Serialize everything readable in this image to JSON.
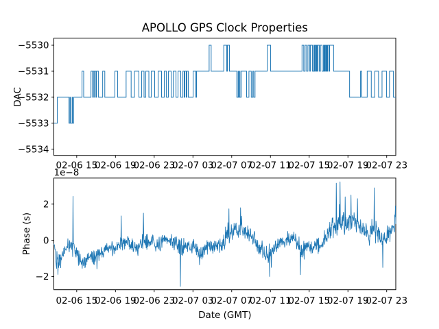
{
  "figure": {
    "title": "APOLLO GPS Clock Properties",
    "background_color": "#ffffff",
    "line_color": "#1f77b4",
    "spine_color": "#000000"
  },
  "chart_data": [
    {
      "type": "line",
      "subtype": "step",
      "title": "APOLLO GPS Clock Properties",
      "ylabel": "DAC",
      "xlabel": "",
      "grid": false,
      "legend": "none",
      "x_unit": "hours relative to tick 02-06 15:00 GMT",
      "x_range_hours": [
        -2.36,
        32.94
      ],
      "ylim": [
        -5534.24,
        -5529.74
      ],
      "y_ticks": [
        -5530,
        -5531,
        -5532,
        -5533,
        -5534
      ],
      "y_tick_labels": [
        "−5530",
        "−5531",
        "−5532",
        "−5533",
        "−5534"
      ],
      "x_ticks_hours": [
        0,
        4,
        8,
        12,
        16,
        20,
        24,
        28,
        32
      ],
      "x_tick_labels": [
        "02-06 15",
        "02-06 19",
        "02-06 23",
        "02-07 03",
        "02-07 07",
        "02-07 11",
        "02-07 15",
        "02-07 19",
        "02-07 23"
      ],
      "line_color": "#1f77b4",
      "step_points": [
        [
          -2.36,
          -5533
        ],
        [
          -2.0,
          -5532
        ],
        [
          -0.8,
          -5533
        ],
        [
          -0.71,
          -5532
        ],
        [
          -0.64,
          -5533
        ],
        [
          -0.47,
          -5532
        ],
        [
          -0.43,
          -5533
        ],
        [
          -0.32,
          -5532
        ],
        [
          0.55,
          -5531
        ],
        [
          0.72,
          -5532
        ],
        [
          1.47,
          -5531
        ],
        [
          1.65,
          -5532
        ],
        [
          1.72,
          -5531
        ],
        [
          1.84,
          -5532
        ],
        [
          1.88,
          -5531
        ],
        [
          2.0,
          -5532
        ],
        [
          2.05,
          -5531
        ],
        [
          2.25,
          -5532
        ],
        [
          2.68,
          -5531
        ],
        [
          2.9,
          -5532
        ],
        [
          3.94,
          -5531
        ],
        [
          4.23,
          -5532
        ],
        [
          5.1,
          -5531
        ],
        [
          5.62,
          -5532
        ],
        [
          5.96,
          -5531
        ],
        [
          6.42,
          -5532
        ],
        [
          6.7,
          -5531
        ],
        [
          6.95,
          -5532
        ],
        [
          7.13,
          -5531
        ],
        [
          7.45,
          -5532
        ],
        [
          7.7,
          -5531
        ],
        [
          8.05,
          -5532
        ],
        [
          8.41,
          -5531
        ],
        [
          8.76,
          -5532
        ],
        [
          9.04,
          -5531
        ],
        [
          9.26,
          -5532
        ],
        [
          9.47,
          -5531
        ],
        [
          9.75,
          -5532
        ],
        [
          9.96,
          -5531
        ],
        [
          10.25,
          -5532
        ],
        [
          10.46,
          -5531
        ],
        [
          10.74,
          -5532
        ],
        [
          10.96,
          -5531
        ],
        [
          11.1,
          -5532
        ],
        [
          11.17,
          -5531
        ],
        [
          11.31,
          -5532
        ],
        [
          11.38,
          -5531
        ],
        [
          11.52,
          -5532
        ],
        [
          12.02,
          -5531
        ],
        [
          12.3,
          -5532
        ],
        [
          12.37,
          -5531
        ],
        [
          13.67,
          -5530
        ],
        [
          13.88,
          -5531
        ],
        [
          15.18,
          -5530
        ],
        [
          15.49,
          -5531
        ],
        [
          15.56,
          -5530
        ],
        [
          15.77,
          -5531
        ],
        [
          16.53,
          -5532
        ],
        [
          16.66,
          -5531
        ],
        [
          16.71,
          -5532
        ],
        [
          16.82,
          -5531
        ],
        [
          16.86,
          -5532
        ],
        [
          16.98,
          -5531
        ],
        [
          17.54,
          -5532
        ],
        [
          17.78,
          -5531
        ],
        [
          18.02,
          -5532
        ],
        [
          18.18,
          -5531
        ],
        [
          18.27,
          -5532
        ],
        [
          18.41,
          -5531
        ],
        [
          19.67,
          -5530
        ],
        [
          20.02,
          -5531
        ],
        [
          23.26,
          -5530
        ],
        [
          23.44,
          -5531
        ],
        [
          23.58,
          -5530
        ],
        [
          23.73,
          -5531
        ],
        [
          23.87,
          -5530
        ],
        [
          24.06,
          -5531
        ],
        [
          24.12,
          -5530
        ],
        [
          24.34,
          -5531
        ],
        [
          24.48,
          -5530
        ],
        [
          24.55,
          -5531
        ],
        [
          24.61,
          -5530
        ],
        [
          24.7,
          -5531
        ],
        [
          24.77,
          -5530
        ],
        [
          24.85,
          -5531
        ],
        [
          24.91,
          -5530
        ],
        [
          25.05,
          -5531
        ],
        [
          25.16,
          -5530
        ],
        [
          25.33,
          -5531
        ],
        [
          25.48,
          -5530
        ],
        [
          25.55,
          -5531
        ],
        [
          25.62,
          -5530
        ],
        [
          25.7,
          -5531
        ],
        [
          25.76,
          -5530
        ],
        [
          25.83,
          -5531
        ],
        [
          25.9,
          -5530
        ],
        [
          26.04,
          -5531
        ],
        [
          26.11,
          -5530
        ],
        [
          26.52,
          -5531
        ],
        [
          28.17,
          -5532
        ],
        [
          29.3,
          -5531
        ],
        [
          29.42,
          -5532
        ],
        [
          29.99,
          -5531
        ],
        [
          30.41,
          -5532
        ],
        [
          30.77,
          -5531
        ],
        [
          31.16,
          -5532
        ],
        [
          31.52,
          -5531
        ],
        [
          31.99,
          -5532
        ],
        [
          32.29,
          -5531
        ],
        [
          32.7,
          -5532
        ]
      ]
    },
    {
      "type": "line",
      "subtype": "noisy-timeseries",
      "ylabel": "Phase (s)",
      "xlabel": "Date (GMT)",
      "offset_text": "1e−8",
      "grid": false,
      "legend": "none",
      "x_unit": "hours relative to tick 02-06 15:00 GMT",
      "x_range_hours": [
        -2.36,
        32.94
      ],
      "ylim_1e8": [
        -2.73,
        3.43
      ],
      "y_ticks_1e8": [
        -2,
        0,
        2
      ],
      "y_tick_labels": [
        "−2",
        "0",
        "2"
      ],
      "x_ticks_hours": [
        0,
        4,
        8,
        12,
        16,
        20,
        24,
        28,
        32
      ],
      "x_tick_labels": [
        "02-06 15",
        "02-06 19",
        "02-06 23",
        "02-07 03",
        "02-07 07",
        "02-07 11",
        "02-07 15",
        "02-07 19",
        "02-07 23"
      ],
      "line_color": "#1f77b4",
      "trend_mean_amp_1e8": [
        [
          -2.3,
          -0.2,
          0.3
        ],
        [
          -2.1,
          -1.0,
          0.8
        ],
        [
          -1.9,
          -1.1,
          0.9
        ],
        [
          -1.6,
          -1.0,
          0.5
        ],
        [
          -1.2,
          -0.6,
          0.4
        ],
        [
          -0.9,
          -0.25,
          0.45
        ],
        [
          -0.7,
          -0.3,
          0.5
        ],
        [
          -0.4,
          -0.1,
          0.9
        ],
        [
          -0.2,
          -0.7,
          0.5
        ],
        [
          0.1,
          -0.85,
          0.5
        ],
        [
          0.4,
          -1.1,
          0.6
        ],
        [
          0.7,
          -1.2,
          0.55
        ],
        [
          1.0,
          -1.05,
          0.5
        ],
        [
          1.25,
          -1.15,
          0.6
        ],
        [
          1.5,
          -1.0,
          0.5
        ],
        [
          1.8,
          -0.9,
          0.5
        ],
        [
          2.1,
          -0.85,
          0.55
        ],
        [
          2.4,
          -0.7,
          0.45
        ],
        [
          2.7,
          -0.6,
          0.5
        ],
        [
          3.0,
          -0.35,
          0.45
        ],
        [
          3.2,
          -0.4,
          0.5
        ],
        [
          3.5,
          -0.55,
          0.5
        ],
        [
          3.8,
          -0.5,
          0.45
        ],
        [
          4.1,
          -0.4,
          0.5
        ],
        [
          4.4,
          -0.3,
          0.55
        ],
        [
          4.6,
          -0.15,
          0.6
        ],
        [
          4.9,
          -0.2,
          0.5
        ],
        [
          5.15,
          -0.1,
          0.45
        ],
        [
          5.4,
          0.0,
          0.5
        ],
        [
          5.7,
          -0.3,
          0.5
        ],
        [
          6.0,
          -0.5,
          0.5
        ],
        [
          6.3,
          -0.45,
          0.5
        ],
        [
          6.6,
          -0.2,
          0.5
        ],
        [
          6.9,
          0.0,
          0.6
        ],
        [
          7.1,
          -0.15,
          0.5
        ],
        [
          7.4,
          -0.1,
          0.5
        ],
        [
          7.7,
          -0.2,
          0.55
        ],
        [
          8.0,
          -0.15,
          0.5
        ],
        [
          8.3,
          -0.3,
          0.55
        ],
        [
          8.55,
          -0.2,
          0.5
        ],
        [
          8.8,
          -0.05,
          0.5
        ],
        [
          9.1,
          0.0,
          0.5
        ],
        [
          9.4,
          0.05,
          0.5
        ],
        [
          9.7,
          -0.05,
          0.5
        ],
        [
          10.0,
          -0.15,
          0.5
        ],
        [
          10.25,
          -0.2,
          0.5
        ],
        [
          10.5,
          -0.3,
          0.6
        ],
        [
          10.7,
          -0.5,
          0.8
        ],
        [
          10.9,
          -0.4,
          0.5
        ],
        [
          11.2,
          -0.2,
          0.5
        ],
        [
          11.5,
          -0.3,
          0.5
        ],
        [
          11.7,
          -0.35,
          0.5
        ],
        [
          12.0,
          -0.3,
          0.6
        ],
        [
          12.3,
          -0.5,
          0.5
        ],
        [
          12.6,
          -0.7,
          0.55
        ],
        [
          12.9,
          -0.6,
          0.5
        ],
        [
          13.2,
          -0.55,
          0.5
        ],
        [
          13.4,
          -0.4,
          0.5
        ],
        [
          13.7,
          -0.3,
          0.5
        ],
        [
          14.0,
          -0.35,
          0.5
        ],
        [
          14.3,
          -0.3,
          0.5
        ],
        [
          14.6,
          -0.2,
          0.5
        ],
        [
          14.9,
          -0.3,
          0.5
        ],
        [
          15.1,
          -0.2,
          0.5
        ],
        [
          15.4,
          0.0,
          0.6
        ],
        [
          15.7,
          0.3,
          0.6
        ],
        [
          16.0,
          0.5,
          0.6
        ],
        [
          16.3,
          0.55,
          0.6
        ],
        [
          16.6,
          0.5,
          0.6
        ],
        [
          16.8,
          0.6,
          0.65
        ],
        [
          17.1,
          0.55,
          0.6
        ],
        [
          17.4,
          0.5,
          0.55
        ],
        [
          17.7,
          0.3,
          0.5
        ],
        [
          18.0,
          0.2,
          0.5
        ],
        [
          18.3,
          0.1,
          0.5
        ],
        [
          18.5,
          -0.1,
          0.55
        ],
        [
          18.8,
          -0.3,
          0.6
        ],
        [
          19.1,
          -0.5,
          0.6
        ],
        [
          19.4,
          -0.6,
          0.65
        ],
        [
          19.7,
          -0.75,
          0.65
        ],
        [
          20.0,
          -0.8,
          0.6
        ],
        [
          20.2,
          -0.5,
          0.55
        ],
        [
          20.5,
          -0.3,
          0.5
        ],
        [
          20.8,
          -0.2,
          0.5
        ],
        [
          21.1,
          -0.1,
          0.5
        ],
        [
          21.4,
          0.0,
          0.5
        ],
        [
          21.7,
          0.1,
          0.5
        ],
        [
          21.9,
          0.1,
          0.5
        ],
        [
          22.2,
          0.15,
          0.5
        ],
        [
          22.5,
          0.0,
          0.5
        ],
        [
          22.8,
          -0.2,
          0.6
        ],
        [
          23.1,
          -0.5,
          0.7
        ],
        [
          23.4,
          -0.55,
          0.6
        ],
        [
          23.6,
          -0.5,
          0.55
        ],
        [
          23.9,
          -0.4,
          0.55
        ],
        [
          24.2,
          -0.35,
          0.5
        ],
        [
          24.5,
          -0.3,
          0.5
        ],
        [
          24.8,
          -0.25,
          0.5
        ],
        [
          25.1,
          -0.3,
          0.6
        ],
        [
          25.3,
          -0.1,
          0.5
        ],
        [
          25.6,
          0.1,
          0.55
        ],
        [
          25.9,
          0.3,
          0.6
        ],
        [
          26.2,
          0.5,
          0.7
        ],
        [
          26.5,
          0.8,
          0.9
        ],
        [
          26.8,
          1.0,
          0.9
        ],
        [
          27.0,
          1.1,
          0.9
        ],
        [
          27.3,
          1.0,
          0.7
        ],
        [
          27.6,
          0.9,
          0.7
        ],
        [
          27.9,
          1.0,
          0.7
        ],
        [
          28.2,
          1.1,
          0.7
        ],
        [
          28.5,
          1.2,
          0.7
        ],
        [
          28.7,
          1.0,
          0.7
        ],
        [
          29.0,
          0.9,
          0.7
        ],
        [
          29.3,
          0.8,
          0.6
        ],
        [
          29.6,
          0.6,
          0.6
        ],
        [
          29.9,
          0.4,
          0.7
        ],
        [
          30.2,
          0.2,
          0.7
        ],
        [
          30.4,
          0.5,
          0.7
        ],
        [
          30.7,
          0.7,
          1.0
        ],
        [
          31.0,
          0.4,
          0.6
        ],
        [
          31.3,
          0.1,
          0.6
        ],
        [
          31.6,
          -0.1,
          0.6
        ],
        [
          31.9,
          0.0,
          0.6
        ],
        [
          32.1,
          0.3,
          0.6
        ],
        [
          32.4,
          0.5,
          0.6
        ],
        [
          32.7,
          0.7,
          0.6
        ],
        [
          32.9,
          1.2,
          0.7
        ]
      ],
      "spikes_1e8": [
        [
          -0.4,
          2.43
        ],
        [
          4.6,
          1.35
        ],
        [
          6.9,
          1.5
        ],
        [
          10.7,
          -2.55
        ],
        [
          15.7,
          1.74
        ],
        [
          16.9,
          1.8
        ],
        [
          19.9,
          -2.0
        ],
        [
          23.1,
          -1.9
        ],
        [
          26.8,
          3.16
        ],
        [
          27.2,
          3.23
        ],
        [
          27.7,
          2.4
        ],
        [
          28.3,
          2.5
        ],
        [
          29.0,
          2.3
        ],
        [
          30.7,
          2.9
        ],
        [
          31.6,
          -1.5
        ],
        [
          32.9,
          1.9
        ]
      ]
    }
  ]
}
